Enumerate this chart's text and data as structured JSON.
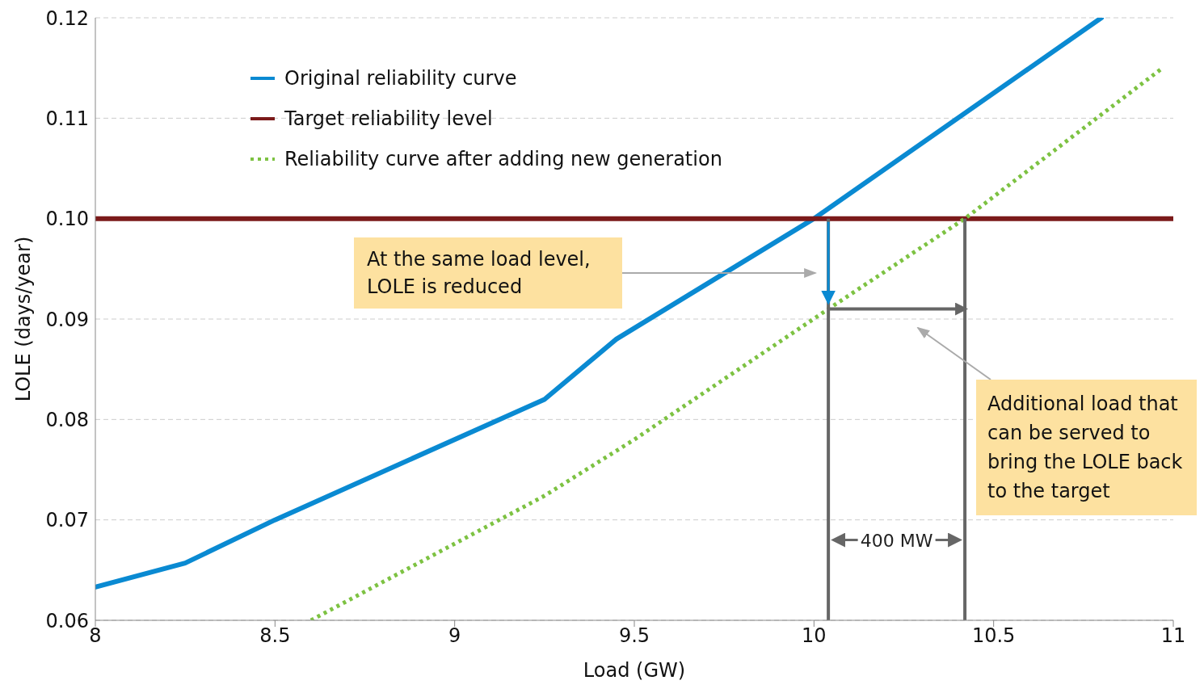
{
  "chart_data": {
    "type": "line",
    "xlabel": "Load (GW)",
    "ylabel": "LOLE (days/year)",
    "xlim": [
      8,
      11
    ],
    "xticks": [
      8,
      8.5,
      9,
      9.5,
      10,
      10.5,
      11
    ],
    "ylim": [
      0.06,
      0.12
    ],
    "yticks": [
      0.06,
      0.07,
      0.08,
      0.09,
      {
        "value": 0.1,
        "label": "0.10"
      },
      0.11,
      0.12
    ],
    "grid": "y",
    "legend": "top left",
    "series": [
      {
        "name": "Original reliability curve",
        "color": "#0a8ad2",
        "line_style": "solid",
        "x": [
          8,
          8.25,
          8.5,
          9.25,
          9.45,
          10,
          10.8
        ],
        "values": [
          0.0633,
          0.0657,
          0.07,
          0.082,
          0.088,
          0.1,
          0.12
        ]
      },
      {
        "name": "Target reliability level",
        "color": "#7b1a1a",
        "line_style": "solid",
        "x": [
          8,
          11
        ],
        "values": [
          0.1,
          0.1
        ]
      },
      {
        "name": "Reliability curve after adding new generation",
        "color": "#7dc242",
        "line_style": "dotted",
        "x": [
          8.6,
          9.25,
          9.5,
          10.04,
          10.42,
          10.97
        ],
        "values": [
          0.06,
          0.0724,
          0.078,
          0.091,
          0.1,
          0.115
        ]
      },
      {
        "color": "#666666",
        "line_style": "solid",
        "x": [
          10.04,
          10.04
        ],
        "values": [
          0.06,
          0.1
        ]
      },
      {
        "color": "#666666",
        "line_style": "solid",
        "x": [
          10.42,
          10.42
        ],
        "values": [
          0.06,
          0.1
        ]
      },
      {
        "color": "#666666",
        "line_style": "solid",
        "x": [
          10.04,
          10.42
        ],
        "values": [
          0.091,
          0.091
        ]
      }
    ],
    "annotations": [
      "At the same load level, LOLE is reduced",
      "Additional load that can be served to bring the LOLE back to the target",
      {
        "text": "400 MW",
        "x": 10.42,
        "y": 0.068
      }
    ]
  }
}
